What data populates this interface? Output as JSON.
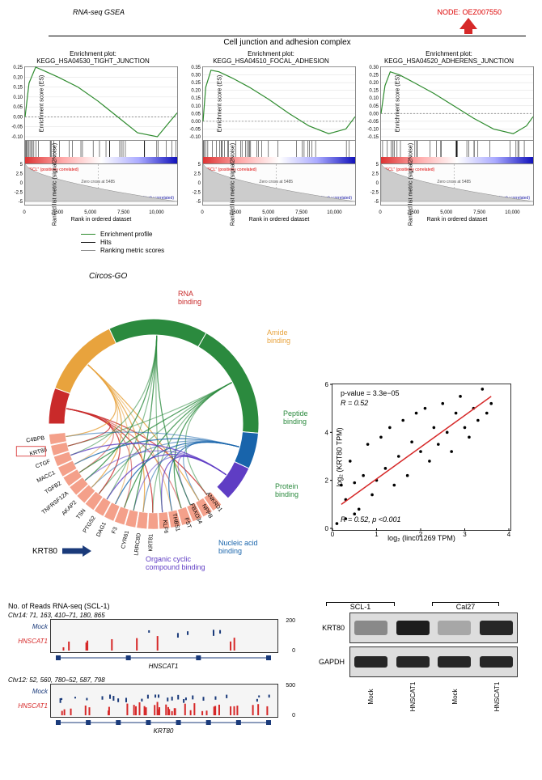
{
  "header": {
    "gsea_label": "RNA-seq GSEA",
    "node_label": "NODE: OEZ007550",
    "section_title": "Cell junction and adhesion complex"
  },
  "gsea_plots": [
    {
      "title1": "Enrichment plot:",
      "title2": "KEGG_HSA04530_TIGHT_JUNCTION",
      "ylabel": "Enrichment score (ES)",
      "ylabel2": "Ranked list metric (signal2Noise)",
      "ylim": [
        -0.1,
        0.25
      ],
      "ytick_step": 0.05,
      "curve_color": "#2e8b2e",
      "profile_x": [
        0,
        300,
        800,
        1500,
        2500,
        4000,
        5500,
        7000,
        8500,
        10000,
        11000,
        11500
      ],
      "profile_y": [
        0.0,
        0.17,
        0.25,
        0.23,
        0.2,
        0.15,
        0.08,
        0.0,
        -0.08,
        -0.1,
        -0.02,
        0.02
      ],
      "xticks": [
        0,
        2500,
        5000,
        7500,
        10000
      ],
      "metric_ylim": [
        -5,
        5
      ],
      "metric_yticks": [
        -5,
        -2.5,
        0,
        2.5,
        5
      ],
      "pos_label": "\"SCL\" (positively correlated)",
      "neg_label": "\"SCL-NC\" (positively correlated)",
      "zero_cross": "Zero cross at 5485",
      "xlabel": "Rank in ordered dataset",
      "hit_density": 0.6
    },
    {
      "title1": "Enrichment plot:",
      "title2": "KEGG_HSA04510_FOCAL_ADHESION",
      "ylabel": "Enrichment score (ES)",
      "ylabel2": "Ranked list metric (signal2Noise)",
      "ylim": [
        -0.1,
        0.35
      ],
      "ytick_step": 0.05,
      "curve_color": "#2e8b2e",
      "profile_x": [
        0,
        200,
        600,
        1200,
        2200,
        3500,
        5000,
        6500,
        8000,
        9500,
        10800,
        11500
      ],
      "profile_y": [
        0.0,
        0.22,
        0.33,
        0.32,
        0.28,
        0.22,
        0.14,
        0.05,
        -0.03,
        -0.08,
        -0.05,
        0.03
      ],
      "xticks": [
        0,
        2500,
        5000,
        7500,
        10000
      ],
      "metric_ylim": [
        -5,
        5
      ],
      "metric_yticks": [
        -5,
        -2.5,
        0,
        2.5,
        5
      ],
      "pos_label": "\"SCL\" (positively correlated)",
      "neg_label": "\"SCL-NC\" (positively correlated)",
      "zero_cross": "Zero cross at 5485",
      "xlabel": "Rank in ordered dataset",
      "hit_density": 0.6
    },
    {
      "title1": "Enrichment plot:",
      "title2": "KEGG_HSA04520_ADHERENS_JUNCTION",
      "ylabel": "Enrichment score (ES)",
      "ylabel2": "Ranked list metric (signal2Noise)",
      "ylim": [
        -0.15,
        0.3
      ],
      "ytick_step": 0.05,
      "curve_color": "#2e8b2e",
      "profile_x": [
        0,
        300,
        700,
        1400,
        2500,
        4000,
        5500,
        7000,
        8500,
        10000,
        11000,
        11500
      ],
      "profile_y": [
        0.0,
        0.18,
        0.27,
        0.25,
        0.2,
        0.13,
        0.05,
        -0.03,
        -0.1,
        -0.13,
        -0.08,
        -0.02
      ],
      "xticks": [
        0,
        2500,
        5000,
        7500,
        10000
      ],
      "metric_ylim": [
        -5,
        5
      ],
      "metric_yticks": [
        -5,
        -2.5,
        0,
        2.5,
        5
      ],
      "pos_label": "\"SCL\" (positively correlated)",
      "neg_label": "\"SCL-NC\" (positively correlated)",
      "zero_cross": "Zero cross at 5485",
      "xlabel": "Rank in ordered dataset",
      "hit_density": 0.5
    }
  ],
  "gsea_legend": [
    {
      "label": "Enrichment profile",
      "color": "#2e8b2e"
    },
    {
      "label": "Hits",
      "color": "#000000"
    },
    {
      "label": "Ranking metric scores",
      "color": "#888888"
    }
  ],
  "circos": {
    "title": "Circos-GO",
    "go_terms": [
      {
        "label": "RNA binding",
        "color": "#c92a2a",
        "angle_start": 270,
        "angle_end": 290
      },
      {
        "label": "Amide binding",
        "color": "#e8a33d",
        "angle_start": 290,
        "angle_end": 335
      },
      {
        "label": "Peptide binding",
        "color": "#2b8a3e",
        "angle_start": 335,
        "angle_end": 30
      },
      {
        "label": "Protein binding",
        "color": "#2b8a3e",
        "angle_start": 30,
        "angle_end": 95
      },
      {
        "label": "Nucleic acid binding",
        "color": "#1864ab",
        "angle_start": 95,
        "angle_end": 115
      },
      {
        "label": "Organic cyclic compound binding",
        "color": "#5f3dc4",
        "angle_start": 115,
        "angle_end": 135
      }
    ],
    "genes": [
      "ANKRD1",
      "NPPB",
      "FBXO34",
      "FST",
      "THBS1",
      "KLF6",
      "KRT81",
      "LRRC8D",
      "CYR61",
      "F3",
      "DAG1",
      "PTGS2",
      "TSN",
      "AKAP2",
      "TNFRSF12A",
      "TGFB2",
      "MACC1",
      "CTGF",
      "KRT80",
      "C4BPB"
    ],
    "gene_color": "#f4a08a",
    "highlight_gene": "KRT80",
    "arrow_label": "KRT80"
  },
  "scatter": {
    "pvalue_text": "p-value = 3.3e−05",
    "r_text": "R = 0.52",
    "r_text2": "R = 0.52, p <0.001",
    "xlabel": "log₂ (linc01269 TPM)",
    "ylabel": "log₂ (KRT80 TPM)",
    "xlim": [
      0,
      4
    ],
    "ylim": [
      0,
      6
    ],
    "xticks": [
      0,
      1,
      2,
      3,
      4
    ],
    "yticks": [
      0,
      2,
      4,
      6
    ],
    "line_color": "#d62828",
    "points": [
      [
        0.1,
        0.2
      ],
      [
        0.2,
        1.8
      ],
      [
        0.3,
        0.4
      ],
      [
        0.3,
        1.2
      ],
      [
        0.4,
        2.8
      ],
      [
        0.5,
        0.6
      ],
      [
        0.5,
        1.9
      ],
      [
        0.6,
        0.8
      ],
      [
        0.7,
        2.2
      ],
      [
        0.8,
        3.5
      ],
      [
        0.9,
        1.4
      ],
      [
        1.0,
        2.0
      ],
      [
        1.1,
        3.8
      ],
      [
        1.2,
        2.5
      ],
      [
        1.3,
        4.2
      ],
      [
        1.4,
        1.8
      ],
      [
        1.5,
        3.0
      ],
      [
        1.6,
        4.5
      ],
      [
        1.7,
        2.2
      ],
      [
        1.8,
        3.6
      ],
      [
        1.9,
        4.8
      ],
      [
        2.0,
        3.2
      ],
      [
        2.1,
        5.0
      ],
      [
        2.2,
        2.8
      ],
      [
        2.3,
        4.2
      ],
      [
        2.4,
        3.5
      ],
      [
        2.5,
        5.2
      ],
      [
        2.6,
        4.0
      ],
      [
        2.7,
        3.2
      ],
      [
        2.8,
        4.8
      ],
      [
        2.9,
        5.5
      ],
      [
        3.0,
        4.2
      ],
      [
        3.1,
        3.8
      ],
      [
        3.2,
        5.0
      ],
      [
        3.3,
        4.5
      ],
      [
        3.4,
        5.8
      ],
      [
        3.5,
        4.8
      ],
      [
        3.6,
        5.2
      ]
    ]
  },
  "rnaseq": {
    "title": "No. of Reads RNA-seq (SCL-1)",
    "tracks": [
      {
        "chr": "Chr14: 71, 163, 410–71, 180, 865",
        "gene": "HNSCAT1",
        "ymax": 200,
        "mock_color": "#1a3a7a",
        "oe_color": "#d62828"
      },
      {
        "chr": "Chr12: 52, 560, 780–52, 587, 798",
        "gene": "KRT80",
        "ymax": 500,
        "mock_color": "#1a3a7a",
        "oe_color": "#d62828"
      }
    ],
    "labels": {
      "mock": "Mock",
      "hnscat": "HNSCAT1"
    }
  },
  "western": {
    "cell_lines": [
      "SCL-1",
      "Cal27"
    ],
    "proteins": [
      "KRT80",
      "GAPDH"
    ],
    "lanes": [
      "Mock",
      "HNSCAT1",
      "Mock",
      "HNSCAT1"
    ]
  }
}
